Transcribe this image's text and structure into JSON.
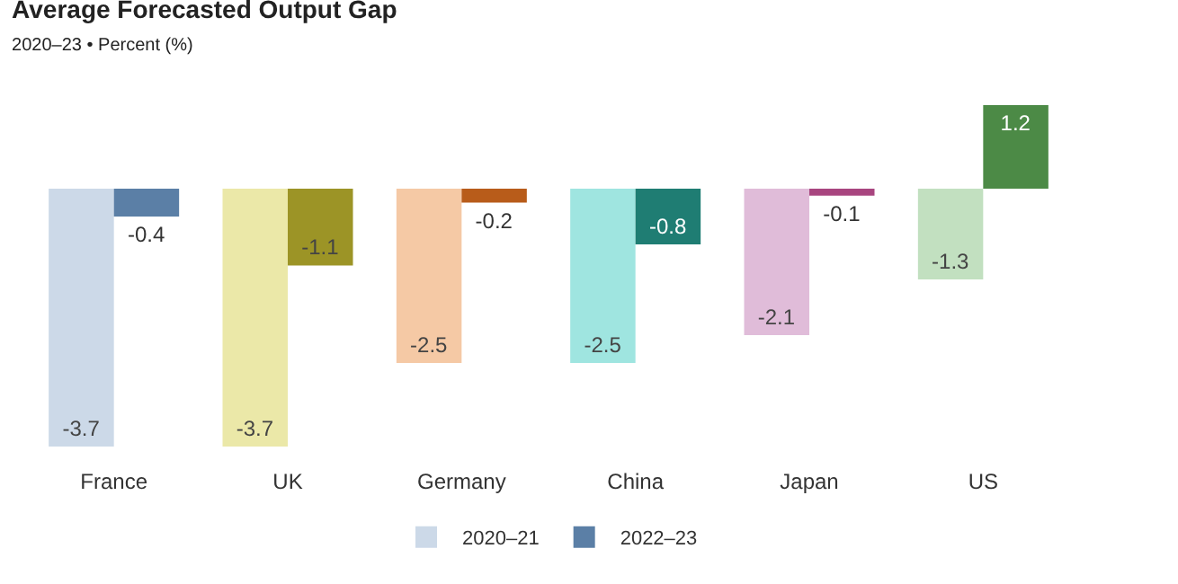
{
  "chart_data": {
    "type": "bar",
    "title": "Average Forecasted Output Gap",
    "subtitle": "2020–23 • Percent (%)",
    "categories": [
      "France",
      "UK",
      "Germany",
      "China",
      "Japan",
      "US"
    ],
    "series": [
      {
        "name": "2020–21",
        "colors": [
          "#ccd9e8",
          "#ebe8a8",
          "#f5c9a5",
          "#9fe5e0",
          "#e0bcd9",
          "#c2e0c0"
        ],
        "values": [
          -3.7,
          -3.7,
          -2.5,
          -2.5,
          -2.1,
          -1.3
        ]
      },
      {
        "name": "2022–23",
        "colors": [
          "#5b7fa6",
          "#9c9426",
          "#b85c1a",
          "#1f7d73",
          "#a8457f",
          "#4c8a46"
        ],
        "values": [
          -0.4,
          -1.1,
          -0.2,
          -0.8,
          -0.1,
          1.2
        ]
      }
    ],
    "data_labels": true,
    "legend": "bottom",
    "grid": false
  }
}
